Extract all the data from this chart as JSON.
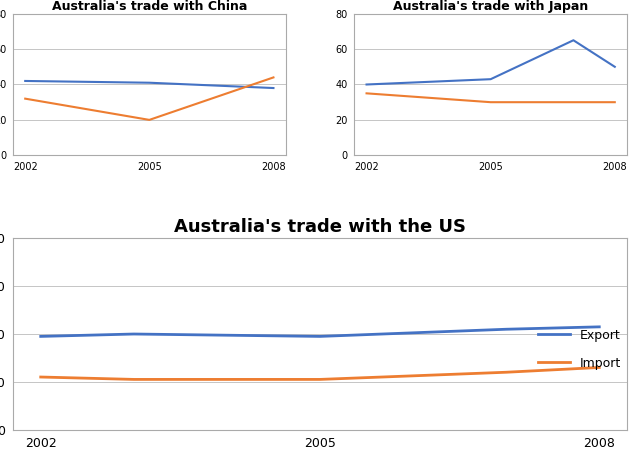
{
  "years": [
    2002,
    2005,
    2008
  ],
  "china_export": [
    42,
    41,
    38
  ],
  "china_import": [
    32,
    20,
    44
  ],
  "japan_export": [
    40,
    43,
    65,
    50
  ],
  "japan_import": [
    35,
    30,
    30,
    30
  ],
  "japan_years": [
    2002,
    2005,
    2007,
    2008
  ],
  "us_export": [
    39,
    40,
    39,
    42,
    43
  ],
  "us_import": [
    22,
    21,
    21,
    24,
    26
  ],
  "us_years": [
    2002,
    2003,
    2005,
    2007,
    2008
  ],
  "export_color": "#4472C4",
  "import_color": "#ED7D31",
  "ylim": [
    0,
    80
  ],
  "yticks": [
    0,
    20,
    40,
    60,
    80
  ],
  "xticks": [
    2002,
    2005,
    2008
  ],
  "title_china": "Australia's trade with China",
  "title_japan": "Australia's trade with Japan",
  "title_us": "Australia's trade with the US",
  "legend_export": "Export",
  "legend_import": "Import",
  "small_title_fontsize": 9,
  "large_title_fontsize": 13,
  "tick_fontsize_small": 7,
  "tick_fontsize_large": 9,
  "bg_color": "#FFFFFF",
  "grid_color": "#BBBBBB",
  "border_color": "#AAAAAA"
}
